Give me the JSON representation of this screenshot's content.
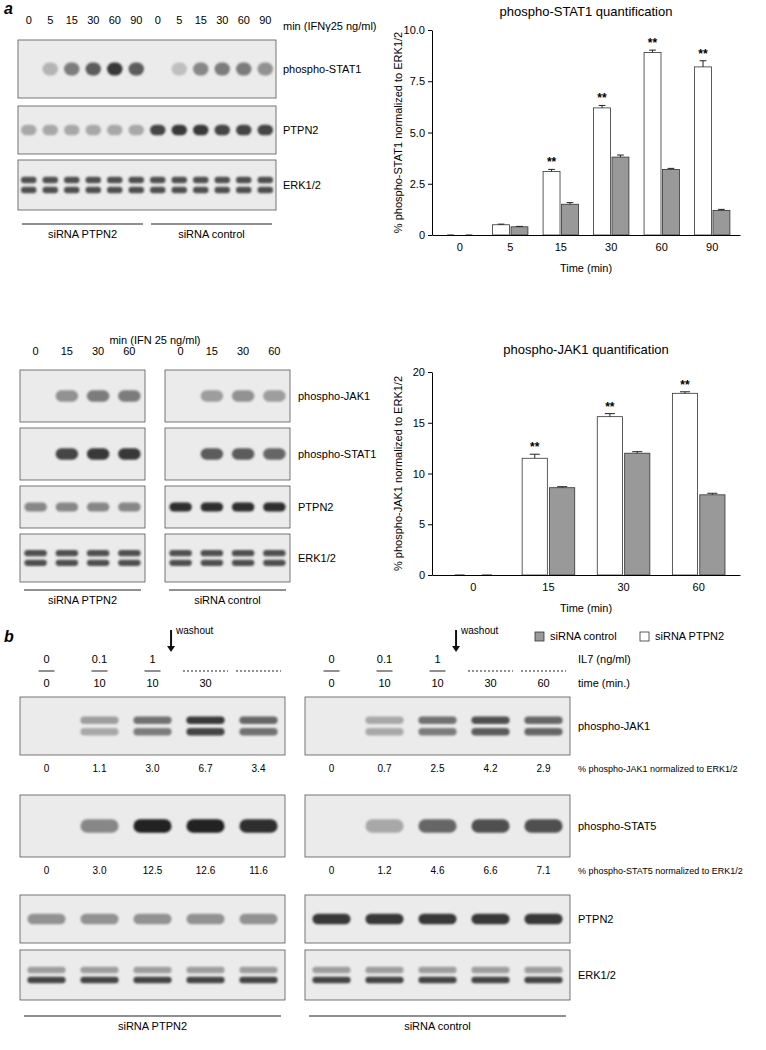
{
  "chart_data": [
    {
      "type": "bar",
      "title": "phospho-STAT1 quantification",
      "x_label": "Time (min)",
      "y_label": "% phospho-STAT1 normalized to ERK1/2",
      "categories": [
        "0",
        "5",
        "15",
        "30",
        "60",
        "90"
      ],
      "series": [
        {
          "color": "#ffffff",
          "values": [
            0,
            0.5,
            3.1,
            6.2,
            8.9,
            8.2
          ],
          "errors": [
            0,
            0.03,
            0.1,
            0.12,
            0.12,
            0.3
          ]
        },
        {
          "color": "#999999",
          "values": [
            0,
            0.4,
            1.5,
            3.8,
            3.2,
            1.2
          ],
          "errors": [
            0,
            0.02,
            0.08,
            0.1,
            0.05,
            0.05
          ]
        }
      ],
      "ylim": [
        0,
        10
      ],
      "yticks": [
        0,
        2.5,
        {
          "value": 5,
          "label": "5.0"
        },
        7.5,
        {
          "value": 10,
          "label": "10.0"
        }
      ],
      "annotations": [
        {
          "x": "15",
          "text": "**"
        },
        {
          "x": "30",
          "text": "**"
        },
        {
          "x": "60",
          "text": "**"
        },
        {
          "x": "90",
          "text": "**"
        }
      ]
    },
    {
      "type": "bar",
      "title": "phospho-JAK1 quantification",
      "x_label": "Time (min)",
      "y_label": "% phospho-JAK1 normalized to ERK1/2",
      "categories": [
        "0",
        "15",
        "30",
        "60"
      ],
      "series": [
        {
          "name": "siRNA PTPN2",
          "color": "#ffffff",
          "values": [
            0,
            11.5,
            15.6,
            17.9
          ],
          "errors": [
            0,
            0.4,
            0.3,
            0.15
          ]
        },
        {
          "name": "siRNA control",
          "color": "#999999",
          "values": [
            0,
            8.6,
            12.0,
            7.9
          ],
          "errors": [
            0,
            0.1,
            0.15,
            0.15
          ]
        }
      ],
      "ylim": [
        0,
        20
      ],
      "yticks": [
        0,
        5,
        10,
        15,
        20
      ],
      "annotations": [
        {
          "x": "15",
          "text": "**"
        },
        {
          "x": "30",
          "text": "**"
        },
        {
          "x": "60",
          "text": "**"
        }
      ]
    }
  ],
  "figure": {
    "panel_labels": [
      "a",
      "b"
    ],
    "blots": [
      {
        "header": "min (IFNγ25 ng/ml)",
        "groups": [
          {
            "label": "siRNA PTPN2",
            "lanes": [
              "0",
              "5",
              "15",
              "30",
              "60",
              "90"
            ]
          },
          {
            "label": "siRNA control",
            "lanes": [
              "0",
              "5",
              "15",
              "30",
              "60",
              "90"
            ]
          }
        ],
        "rows": [
          {
            "label": "phospho-STAT1",
            "bands": [
              [
                [
                  0
                ],
                [
                  0.25
                ],
                [
                  0.5
                ],
                [
                  0.65
                ],
                [
                  0.8
                ],
                [
                  0.65
                ]
              ],
              [
                [
                  0
                ],
                [
                  0.2
                ],
                [
                  0.45
                ],
                [
                  0.5
                ],
                [
                  0.5
                ],
                [
                  0.4
                ]
              ]
            ]
          },
          {
            "label": "PTPN2",
            "bands": [
              [
                [
                  0.3
                ],
                [
                  0.3
                ],
                [
                  0.3
                ],
                [
                  0.3
                ],
                [
                  0.3
                ],
                [
                  0.3
                ]
              ],
              [
                [
                  0.75
                ],
                [
                  0.8
                ],
                [
                  0.8
                ],
                [
                  0.75
                ],
                [
                  0.75
                ],
                [
                  0.75
                ]
              ]
            ]
          },
          {
            "label": "ERK1/2",
            "bands": [
              [
                [
                  0.7,
                  0.7
                ],
                [
                  0.7,
                  0.7
                ],
                [
                  0.7,
                  0.7
                ],
                [
                  0.7,
                  0.7
                ],
                [
                  0.7,
                  0.7
                ],
                [
                  0.7,
                  0.7
                ]
              ],
              [
                [
                  0.7,
                  0.7
                ],
                [
                  0.7,
                  0.7
                ],
                [
                  0.7,
                  0.7
                ],
                [
                  0.7,
                  0.7
                ],
                [
                  0.7,
                  0.7
                ],
                [
                  0.7,
                  0.7
                ]
              ]
            ]
          }
        ]
      },
      {
        "header": "min (IFN 25 ng/ml)",
        "groups": [
          {
            "label": "siRNA PTPN2",
            "lanes": [
              "0",
              "15",
              "30",
              "60"
            ]
          },
          {
            "label": "siRNA control",
            "lanes": [
              "0",
              "15",
              "30",
              "60"
            ]
          }
        ],
        "rows": [
          {
            "label": "phospho-JAK1",
            "bands": [
              [
                [
                  0
                ],
                [
                  0.4
                ],
                [
                  0.5
                ],
                [
                  0.5
                ]
              ],
              [
                [
                  0
                ],
                [
                  0.35
                ],
                [
                  0.4
                ],
                [
                  0.35
                ]
              ]
            ]
          },
          {
            "label": "phospho-STAT1",
            "bands": [
              [
                [
                  0
                ],
                [
                  0.75
                ],
                [
                  0.8
                ],
                [
                  0.8
                ]
              ],
              [
                [
                  0
                ],
                [
                  0.65
                ],
                [
                  0.65
                ],
                [
                  0.6
                ]
              ]
            ]
          },
          {
            "label": "PTPN2",
            "bands": [
              [
                [
                  0.45
                ],
                [
                  0.45
                ],
                [
                  0.45
                ],
                [
                  0.45
                ]
              ],
              [
                [
                  0.85
                ],
                [
                  0.85
                ],
                [
                  0.85
                ],
                [
                  0.85
                ]
              ]
            ]
          },
          {
            "label": "ERK1/2",
            "bands": [
              [
                [
                  0.7,
                  0.7
                ],
                [
                  0.7,
                  0.7
                ],
                [
                  0.7,
                  0.7
                ],
                [
                  0.7,
                  0.7
                ]
              ],
              [
                [
                  0.7,
                  0.7
                ],
                [
                  0.7,
                  0.7
                ],
                [
                  0.7,
                  0.7
                ],
                [
                  0.7,
                  0.7
                ]
              ]
            ]
          }
        ]
      },
      {
        "header_labels": [
          "IL7 (ng/ml)",
          "time (min.)"
        ],
        "groups": [
          {
            "label": "siRNA PTPN2",
            "header_rows": [
              [
                "0",
                "0.1",
                "1",
                null,
                null
              ],
              [
                "0",
                "10",
                "10",
                "30",
                null
              ]
            ],
            "washout": "washout"
          },
          {
            "label": "siRNA control",
            "header_rows": [
              [
                "0",
                "0.1",
                "1",
                null,
                null
              ],
              [
                "0",
                "10",
                "10",
                "30",
                "60"
              ]
            ],
            "washout": "washout"
          }
        ],
        "rows": [
          {
            "label": "phospho-JAK1",
            "bands": [
              [
                [
                  0,
                  0
                ],
                [
                  0.35,
                  0.3
                ],
                [
                  0.55,
                  0.5
                ],
                [
                  0.8,
                  0.75
                ],
                [
                  0.6,
                  0.55
                ]
              ],
              [
                [
                  0,
                  0
                ],
                [
                  0.3,
                  0.3
                ],
                [
                  0.55,
                  0.5
                ],
                [
                  0.7,
                  0.65
                ],
                [
                  0.6,
                  0.6
                ]
              ]
            ],
            "quant_label": "% phospho-JAK1 normalized to ERK1/2",
            "quant": [
              [
                "0",
                "1.1",
                "3.0",
                "6.7",
                "3.4"
              ],
              [
                "0",
                "0.7",
                "2.5",
                "4.2",
                "2.9"
              ]
            ]
          },
          {
            "label": "phospho-STAT5",
            "bands": [
              [
                [
                  0
                ],
                [
                  0.45
                ],
                [
                  0.9
                ],
                [
                  0.9
                ],
                [
                  0.85
                ]
              ],
              [
                [
                  0
                ],
                [
                  0.3
                ],
                [
                  0.6
                ],
                [
                  0.7
                ],
                [
                  0.7
                ]
              ]
            ],
            "quant_label": "% phospho-STAT5 normalized to ERK1/2",
            "quant": [
              [
                "0",
                "3.0",
                "12.5",
                "12.6",
                "11.6"
              ],
              [
                "0",
                "1.2",
                "4.6",
                "6.6",
                "7.1"
              ]
            ]
          },
          {
            "label": "PTPN2",
            "bands": [
              [
                [
                  0.4
                ],
                [
                  0.4
                ],
                [
                  0.4
                ],
                [
                  0.4
                ],
                [
                  0.4
                ]
              ],
              [
                [
                  0.8
                ],
                [
                  0.8
                ],
                [
                  0.8
                ],
                [
                  0.8
                ],
                [
                  0.8
                ]
              ]
            ]
          },
          {
            "label": "ERK1/2",
            "bands": [
              [
                [
                  0.35,
                  0.75
                ],
                [
                  0.35,
                  0.75
                ],
                [
                  0.35,
                  0.75
                ],
                [
                  0.35,
                  0.75
                ],
                [
                  0.35,
                  0.75
                ]
              ],
              [
                [
                  0.35,
                  0.75
                ],
                [
                  0.35,
                  0.75
                ],
                [
                  0.35,
                  0.75
                ],
                [
                  0.35,
                  0.75
                ],
                [
                  0.35,
                  0.75
                ]
              ]
            ]
          }
        ]
      }
    ]
  }
}
